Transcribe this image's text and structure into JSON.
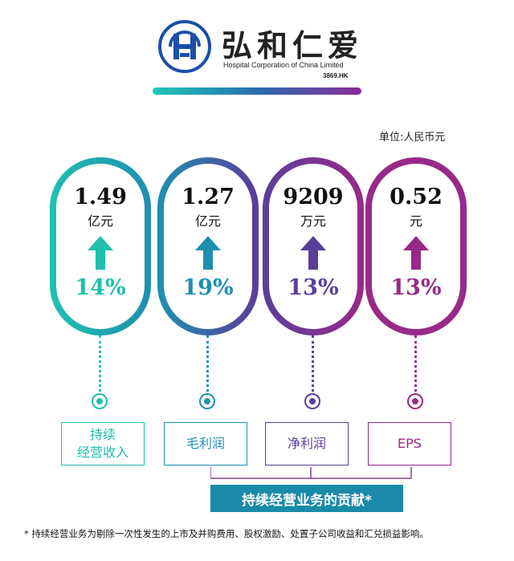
{
  "brand": {
    "name_cn": "弘和仁爱",
    "name_en": "Hospital Corporation of China Limited",
    "ticker": "3869.HK"
  },
  "unit_label": "单位:人民币元",
  "chart_data": {
    "type": "table",
    "metrics": [
      {
        "label": "持续经营收入",
        "label_lines": [
          "持续",
          "经营收入"
        ],
        "value": "1.49",
        "unit": "亿元",
        "growth": "14%",
        "direction": "up",
        "color": "#1fc0ad"
      },
      {
        "label": "毛利润",
        "value": "1.27",
        "unit": "亿元",
        "growth": "19%",
        "direction": "up",
        "color": "#1f8fb0"
      },
      {
        "label": "净利润",
        "value": "9209",
        "unit": "万元",
        "growth": "13%",
        "direction": "up",
        "color": "#5a3f9a"
      },
      {
        "label": "EPS",
        "value": "0.52",
        "unit": "元",
        "growth": "13%",
        "direction": "up",
        "color": "#972a88"
      }
    ]
  },
  "contribution_label": "持续经营业务的贡献*",
  "footnote": "* 持续经营业务为剔除一次性发生的上市及并购费用、股权激励、处置子公司收益和汇兑损益影响。",
  "colors": {
    "teal": "#1fc0ad",
    "blue": "#1f8fb0",
    "indigo": "#5a3f9a",
    "purple": "#972a88",
    "contrib_bar": "#1a8aa8",
    "logo_blue": "#1c4fa8"
  }
}
